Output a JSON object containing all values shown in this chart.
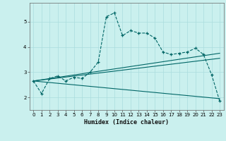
{
  "xlabel": "Humidex (Indice chaleur)",
  "background_color": "#caf0ee",
  "grid_color": "#aadddd",
  "line_color": "#006666",
  "xlim": [
    -0.5,
    23.5
  ],
  "ylim": [
    1.5,
    5.75
  ],
  "xticks": [
    0,
    1,
    2,
    3,
    4,
    5,
    6,
    7,
    8,
    9,
    10,
    11,
    12,
    13,
    14,
    15,
    16,
    17,
    18,
    19,
    20,
    21,
    22,
    23
  ],
  "yticks": [
    2,
    3,
    4,
    5
  ],
  "main_x": [
    0,
    1,
    2,
    3,
    4,
    5,
    6,
    7,
    8,
    9,
    10,
    11,
    12,
    13,
    14,
    15,
    16,
    17,
    18,
    19,
    20,
    21,
    22,
    23
  ],
  "main_y": [
    2.65,
    2.15,
    2.75,
    2.85,
    2.65,
    2.8,
    2.75,
    3.0,
    3.4,
    5.2,
    5.35,
    4.45,
    4.65,
    4.55,
    4.55,
    4.35,
    3.8,
    3.7,
    3.75,
    3.8,
    3.95,
    3.7,
    2.9,
    1.85
  ],
  "trend1_x": [
    0,
    23
  ],
  "trend1_y": [
    2.65,
    3.75
  ],
  "trend2_x": [
    0,
    23
  ],
  "trend2_y": [
    2.65,
    3.55
  ],
  "trend3_x": [
    0,
    23
  ],
  "trend3_y": [
    2.65,
    1.95
  ]
}
